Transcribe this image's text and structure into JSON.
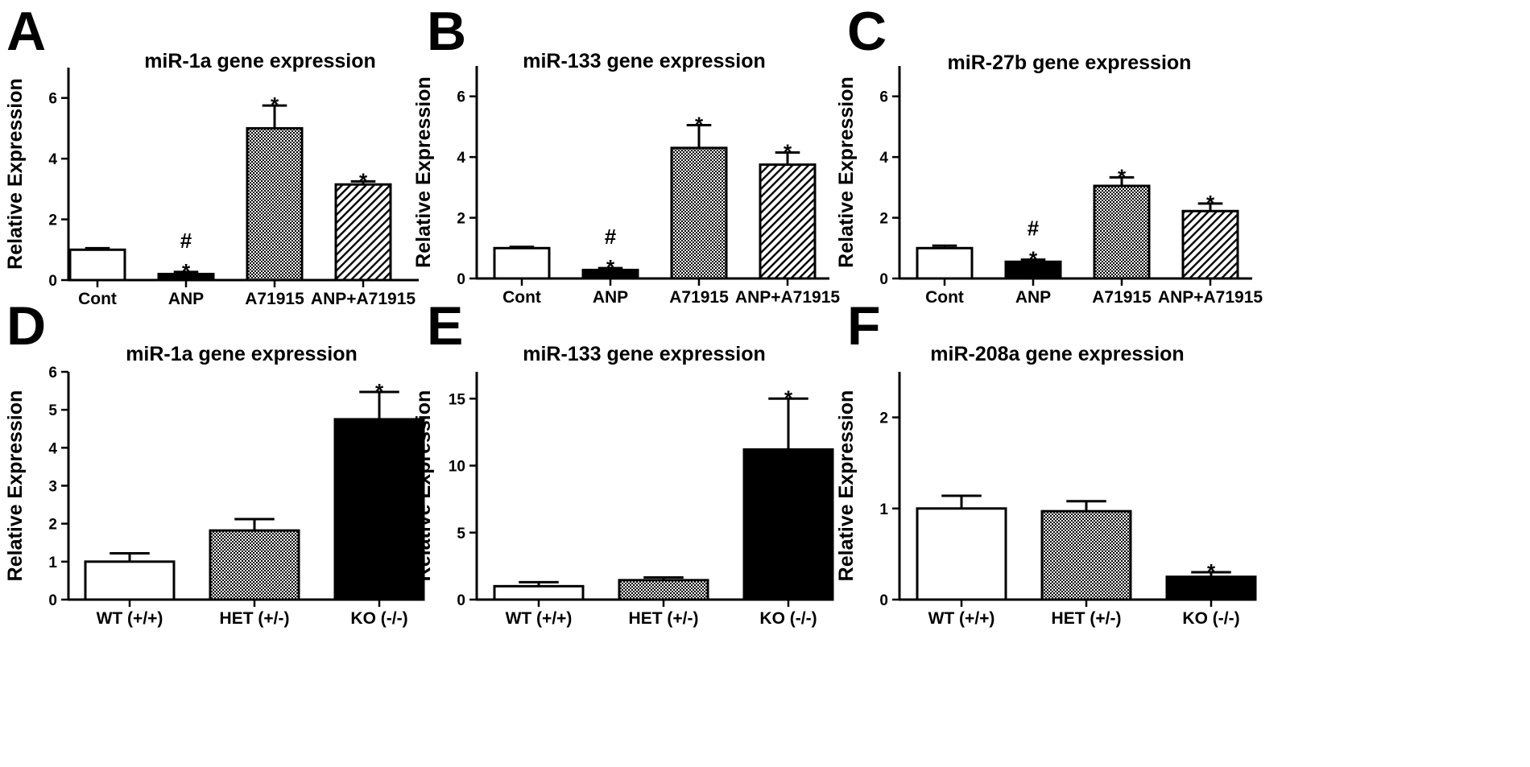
{
  "figure": {
    "panel_letters": [
      "A",
      "B",
      "C",
      "D",
      "E",
      "F"
    ]
  },
  "colors": {
    "axis": "#000000",
    "bar_outline": "#000000",
    "fill_white": "#ffffff",
    "fill_black": "#000000",
    "fill_stipple": "#8c8c8c",
    "fill_hatch": "#000000"
  },
  "chart_data": [
    {
      "type": "bar",
      "panel": "A",
      "title": "miR-1a gene expression",
      "xlabel": "",
      "ylabel": "Relative Expression",
      "ylim": [
        0,
        7
      ],
      "yticks": [
        0,
        2,
        4,
        6
      ],
      "categories": [
        "Cont",
        "ANP",
        "A71915",
        "ANP+A71915"
      ],
      "values": [
        1.0,
        0.2,
        5.0,
        3.15
      ],
      "errors": [
        0.05,
        0.07,
        0.75,
        0.1
      ],
      "fills": [
        "white",
        "black",
        "stipple",
        "hatch"
      ],
      "annotations": [
        "",
        "#\n*",
        "*",
        "*"
      ]
    },
    {
      "type": "bar",
      "panel": "B",
      "title": "miR-133 gene expression",
      "xlabel": "",
      "ylabel": "Relative Expression",
      "ylim": [
        0,
        7
      ],
      "yticks": [
        0,
        2,
        4,
        6
      ],
      "categories": [
        "Cont",
        "ANP",
        "A71915",
        "ANP+A71915"
      ],
      "values": [
        1.0,
        0.28,
        4.3,
        3.75
      ],
      "errors": [
        0.04,
        0.06,
        0.75,
        0.4
      ],
      "fills": [
        "white",
        "black",
        "stipple",
        "hatch"
      ],
      "annotations": [
        "",
        "#\n*",
        "*",
        "*"
      ]
    },
    {
      "type": "bar",
      "panel": "C",
      "title": "miR-27b gene expression",
      "xlabel": "",
      "ylabel": "Relative Expression",
      "ylim": [
        0,
        7
      ],
      "yticks": [
        0,
        2,
        4,
        6
      ],
      "categories": [
        "Cont",
        "ANP",
        "A71915",
        "ANP+A71915"
      ],
      "values": [
        1.0,
        0.55,
        3.05,
        2.22
      ],
      "errors": [
        0.08,
        0.07,
        0.28,
        0.25
      ],
      "fills": [
        "white",
        "black",
        "stipple",
        "hatch"
      ],
      "annotations": [
        "",
        "#\n*",
        "*",
        "*"
      ]
    },
    {
      "type": "bar",
      "panel": "D",
      "title": "miR-1a gene expression",
      "xlabel": "",
      "ylabel": "Relative Expression",
      "ylim": [
        0,
        6
      ],
      "yticks": [
        0,
        1,
        2,
        3,
        4,
        5,
        6
      ],
      "categories": [
        "WT (+/+)",
        "HET (+/-)",
        "KO (-/-)"
      ],
      "values": [
        1.0,
        1.82,
        4.75
      ],
      "errors": [
        0.22,
        0.3,
        0.72
      ],
      "fills": [
        "white",
        "stipple",
        "black"
      ],
      "annotations": [
        "",
        "",
        "*"
      ]
    },
    {
      "type": "bar",
      "panel": "E",
      "title": "miR-133 gene expression",
      "xlabel": "",
      "ylabel": "Relative Expression",
      "ylim": [
        0,
        17
      ],
      "yticks": [
        0,
        5,
        10,
        15
      ],
      "categories": [
        "WT (+/+)",
        "HET (+/-)",
        "KO (-/-)"
      ],
      "values": [
        1.0,
        1.45,
        11.2
      ],
      "errors": [
        0.3,
        0.2,
        3.8
      ],
      "fills": [
        "white",
        "stipple",
        "black"
      ],
      "annotations": [
        "",
        "",
        "*"
      ]
    },
    {
      "type": "bar",
      "panel": "F",
      "title": "miR-208a gene expression",
      "xlabel": "",
      "ylabel": "Relative Expression",
      "ylim": [
        0,
        2.5
      ],
      "yticks": [
        0,
        1,
        2
      ],
      "categories": [
        "WT (+/+)",
        "HET (+/-)",
        "KO (-/-)"
      ],
      "values": [
        1.0,
        0.97,
        0.25
      ],
      "errors": [
        0.14,
        0.11,
        0.05
      ],
      "fills": [
        "white",
        "stipple",
        "black"
      ],
      "annotations": [
        "",
        "",
        "*"
      ]
    }
  ]
}
